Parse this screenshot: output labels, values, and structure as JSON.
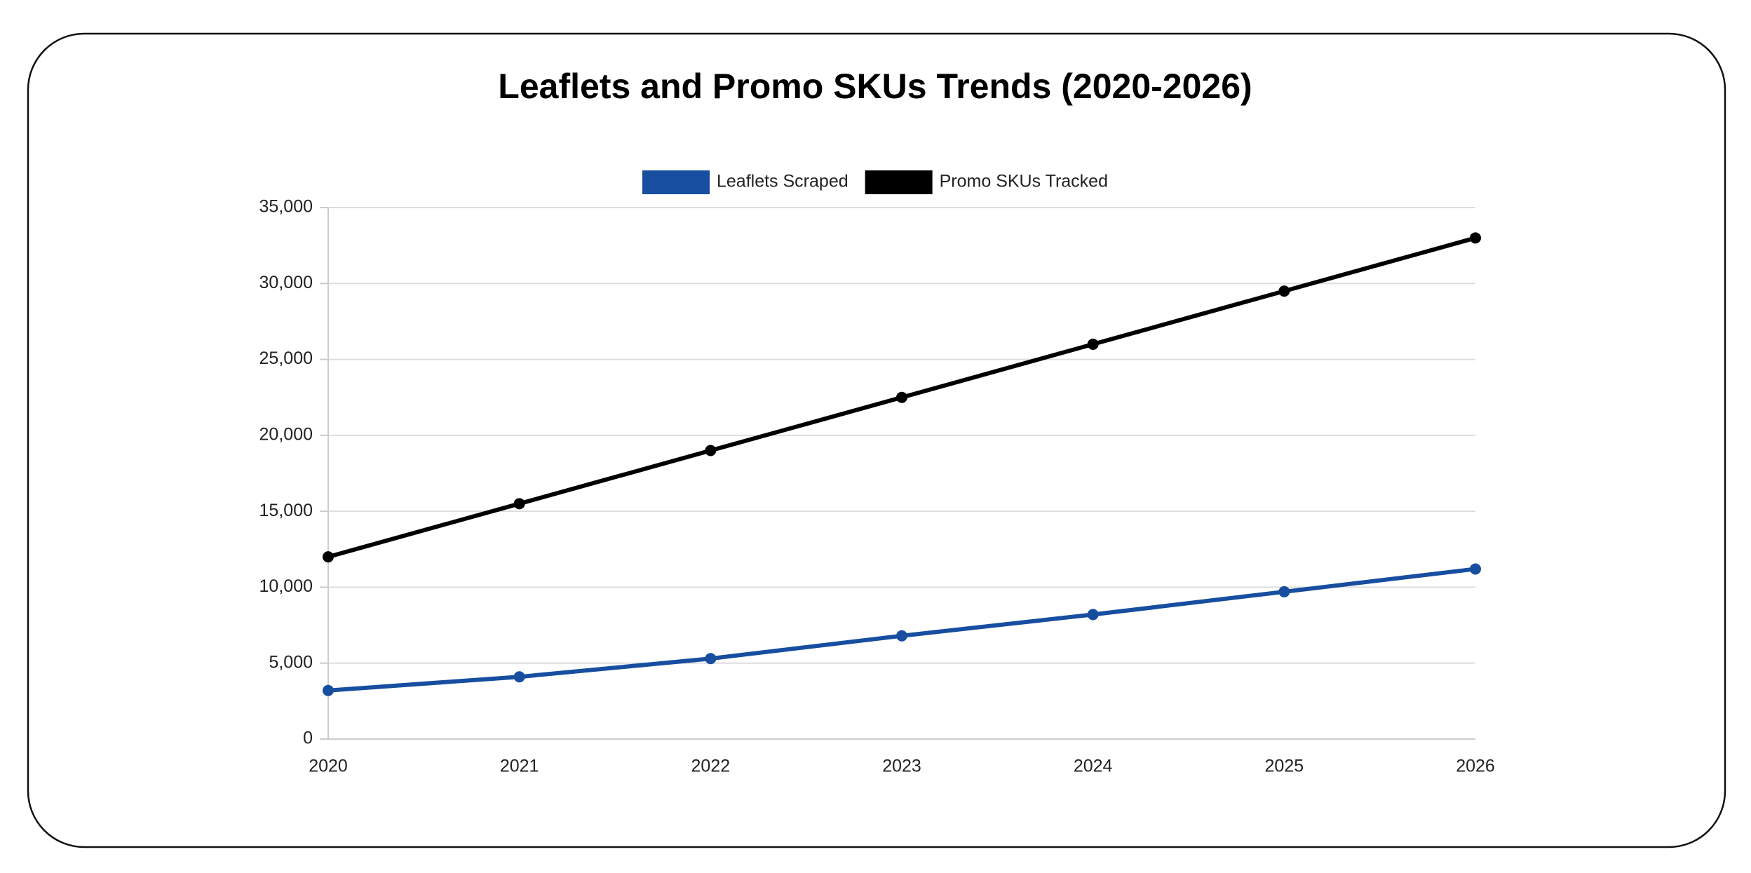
{
  "chart_data": {
    "type": "line",
    "title": "Leaflets and Promo SKUs Trends (2020-2026)",
    "categories": [
      "2020",
      "2021",
      "2022",
      "2023",
      "2024",
      "2025",
      "2026"
    ],
    "series": [
      {
        "name": "Leaflets Scraped",
        "color": "#174ea0",
        "values": [
          3200,
          4100,
          5300,
          6800,
          8200,
          9700,
          11200
        ]
      },
      {
        "name": "Promo SKUs Tracked",
        "color": "#000000",
        "values": [
          12000,
          15500,
          19000,
          22500,
          26000,
          29500,
          33000
        ]
      }
    ],
    "ylim": [
      0,
      35000
    ],
    "yticks": [
      0,
      {
        "value": 5000,
        "label": "5,000"
      },
      {
        "value": 10000,
        "label": "10,000"
      },
      {
        "value": 15000,
        "label": "15,000"
      },
      {
        "value": 20000,
        "label": "20,000"
      },
      {
        "value": 25000,
        "label": "25,000"
      },
      {
        "value": 30000,
        "label": "30,000"
      },
      {
        "value": 35000,
        "label": "35,000"
      }
    ],
    "grid": true,
    "legend": "top"
  }
}
